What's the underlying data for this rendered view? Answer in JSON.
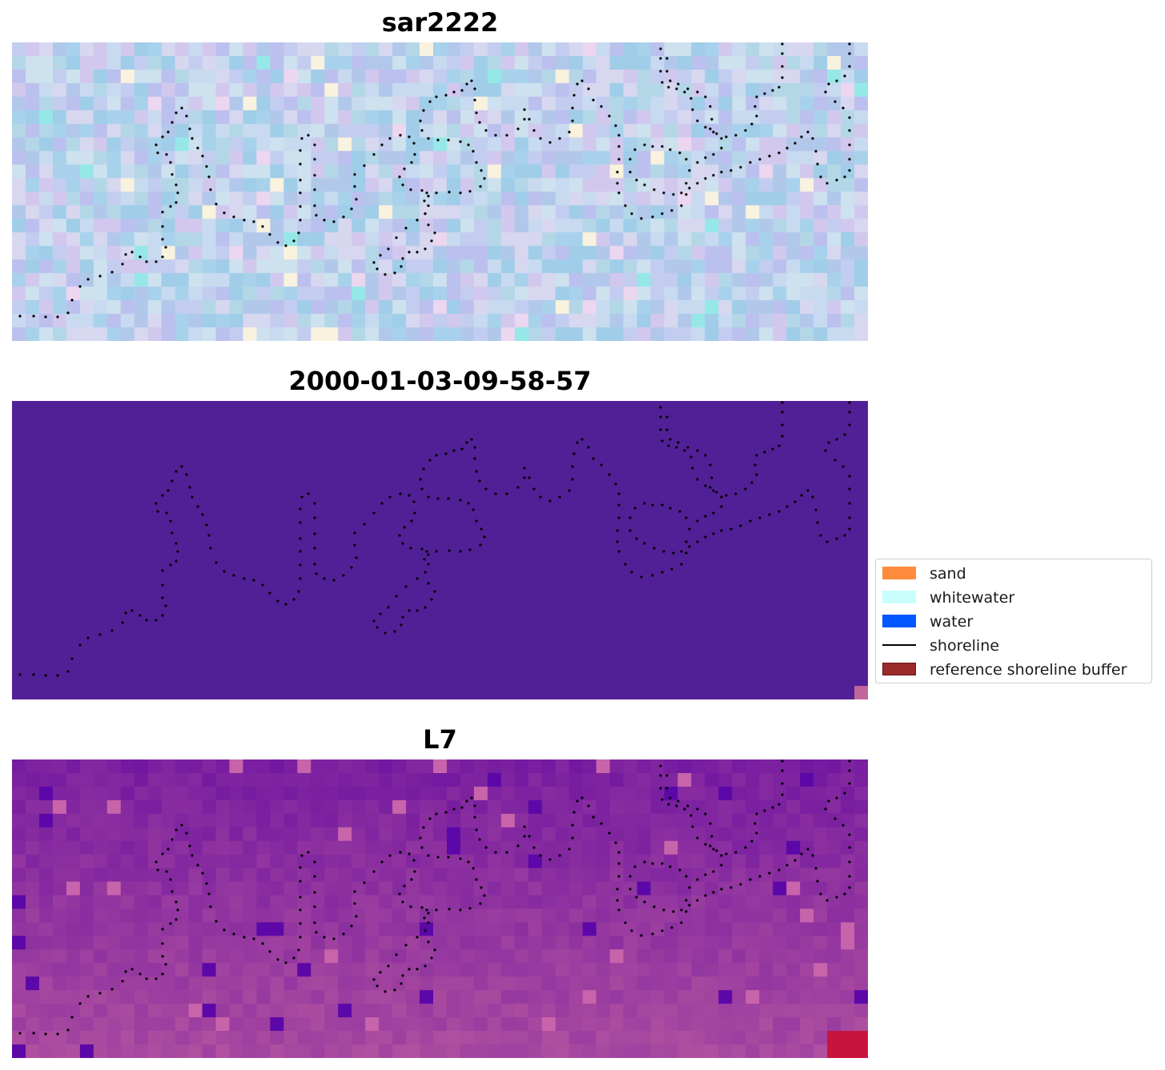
{
  "chart_data": {
    "type": "heatmap",
    "panels": [
      {
        "title": "sar2222",
        "colormap": "pastel-blue-pink",
        "seed": 11
      },
      {
        "title": "2000-01-03-09-58-57",
        "fill_color": "#522096",
        "corner_color": "#c0679a"
      },
      {
        "title": "L7",
        "colormap": "purple-magenta",
        "seed": 29
      }
    ],
    "grid": false,
    "axes_visible": false,
    "legend": {
      "placement": "right-center",
      "items": [
        {
          "label": "sand",
          "color": "#ff8c3c",
          "kind": "patch"
        },
        {
          "label": "whitewater",
          "color": "#c8fffc",
          "kind": "patch"
        },
        {
          "label": "water",
          "color": "#0057ff",
          "kind": "patch"
        },
        {
          "label": "shoreline",
          "color": "#000000",
          "kind": "line"
        },
        {
          "label": "reference shoreline buffer",
          "color": "#9b2a2a",
          "kind": "patch"
        }
      ]
    }
  }
}
